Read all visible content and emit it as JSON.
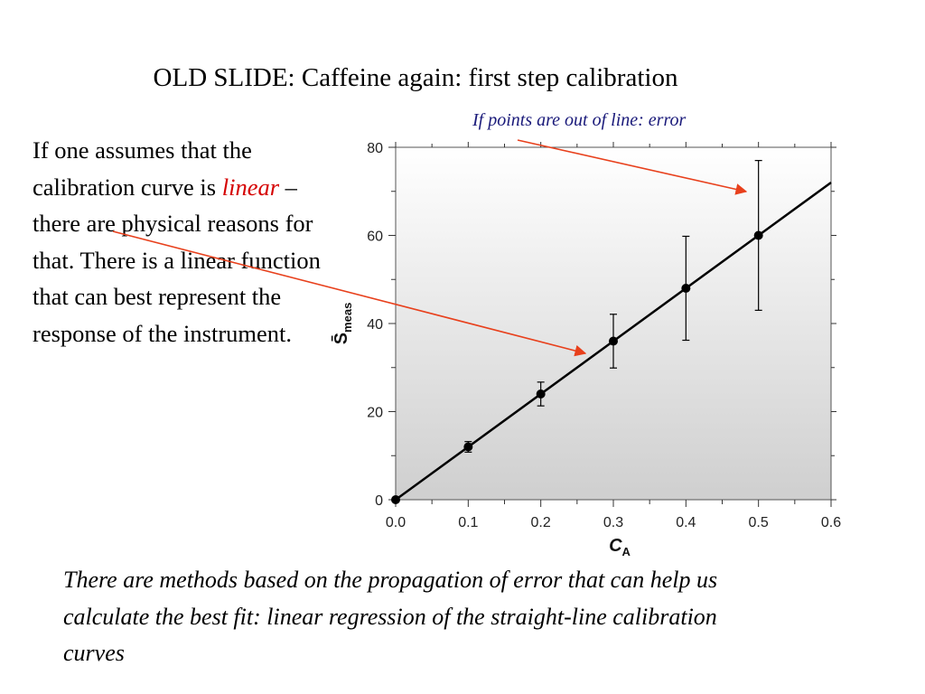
{
  "slide": {
    "title": "OLD SLIDE:  Caffeine again: first step calibration",
    "annotation_top": "If points are out of line: error",
    "left_paragraph": {
      "part1": "If one assumes that the calibration curve is ",
      "highlight": "linear",
      "part2": " – there are physical reasons for that.  There is a linear function that can best represent the response of the instrument."
    },
    "bottom_paragraph": "There are methods based on the propagation of error that can help us calculate the best fit: linear regression of the straight-line calibration curves"
  },
  "colors": {
    "arrow": "#e8401c",
    "highlight": "#d50000",
    "plot_bg_top": "#ffffff",
    "plot_bg_bottom": "#cfcfcf",
    "data": "#000000"
  },
  "chart_data": {
    "type": "scatter",
    "xlabel": "C",
    "xlabel_sub": "A",
    "ylabel": "S̄",
    "ylabel_sub": "meas",
    "xlim": [
      0.0,
      0.6
    ],
    "ylim": [
      0,
      80
    ],
    "x_ticks": [
      "0.0",
      "0.1",
      "0.2",
      "0.3",
      "0.4",
      "0.5",
      "0.6"
    ],
    "y_ticks": [
      "0",
      "20",
      "40",
      "60",
      "80"
    ],
    "series": [
      {
        "x": [
          0.0,
          0.1,
          0.2,
          0.3,
          0.4,
          0.5
        ],
        "y": [
          0,
          12,
          24,
          36,
          48,
          60
        ],
        "error": [
          0,
          1.2,
          2.7,
          6.1,
          11.8,
          17
        ]
      }
    ],
    "fit_line": {
      "slope": 120,
      "intercept": 0
    },
    "grid": false
  }
}
